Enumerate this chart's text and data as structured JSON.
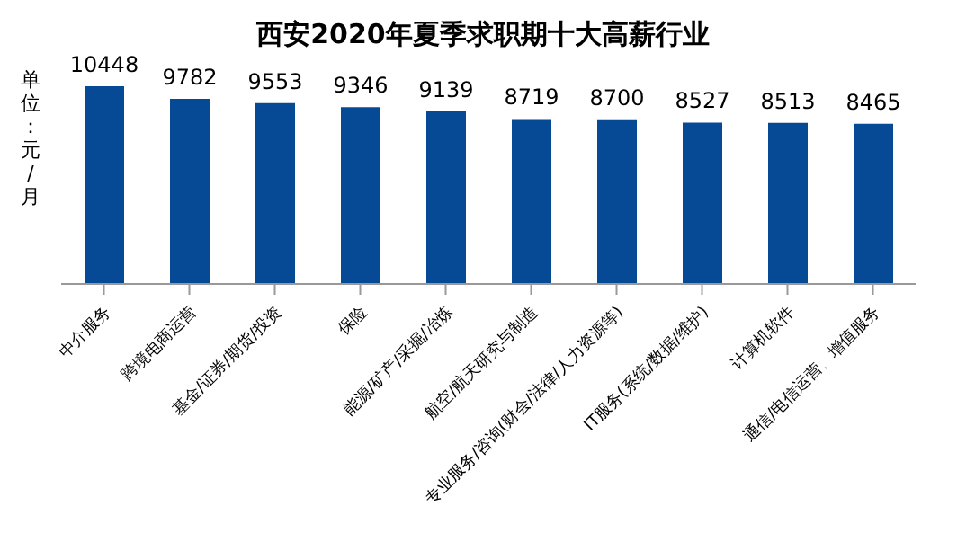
{
  "chart_data": {
    "type": "bar",
    "title": "西安2020年夏季求职期十大高薪行业",
    "ylabel": "单位：元/月",
    "categories": [
      "中介服务",
      "跨境电商运营",
      "基金/证券/期货/投资",
      "保险",
      "能源/矿产/采掘/冶炼",
      "航空/航天研究与制造",
      "专业服务/咨询(财会/法律/人力资源等)",
      "IT服务(系统/数据/维护)",
      "计算机软件",
      "通信/电信运营、增值服务"
    ],
    "values": [
      10448,
      9782,
      9553,
      9346,
      9139,
      8719,
      8700,
      8527,
      8513,
      8465
    ],
    "color": "#064a96",
    "tick_labels": "x",
    "data_labels": true
  }
}
